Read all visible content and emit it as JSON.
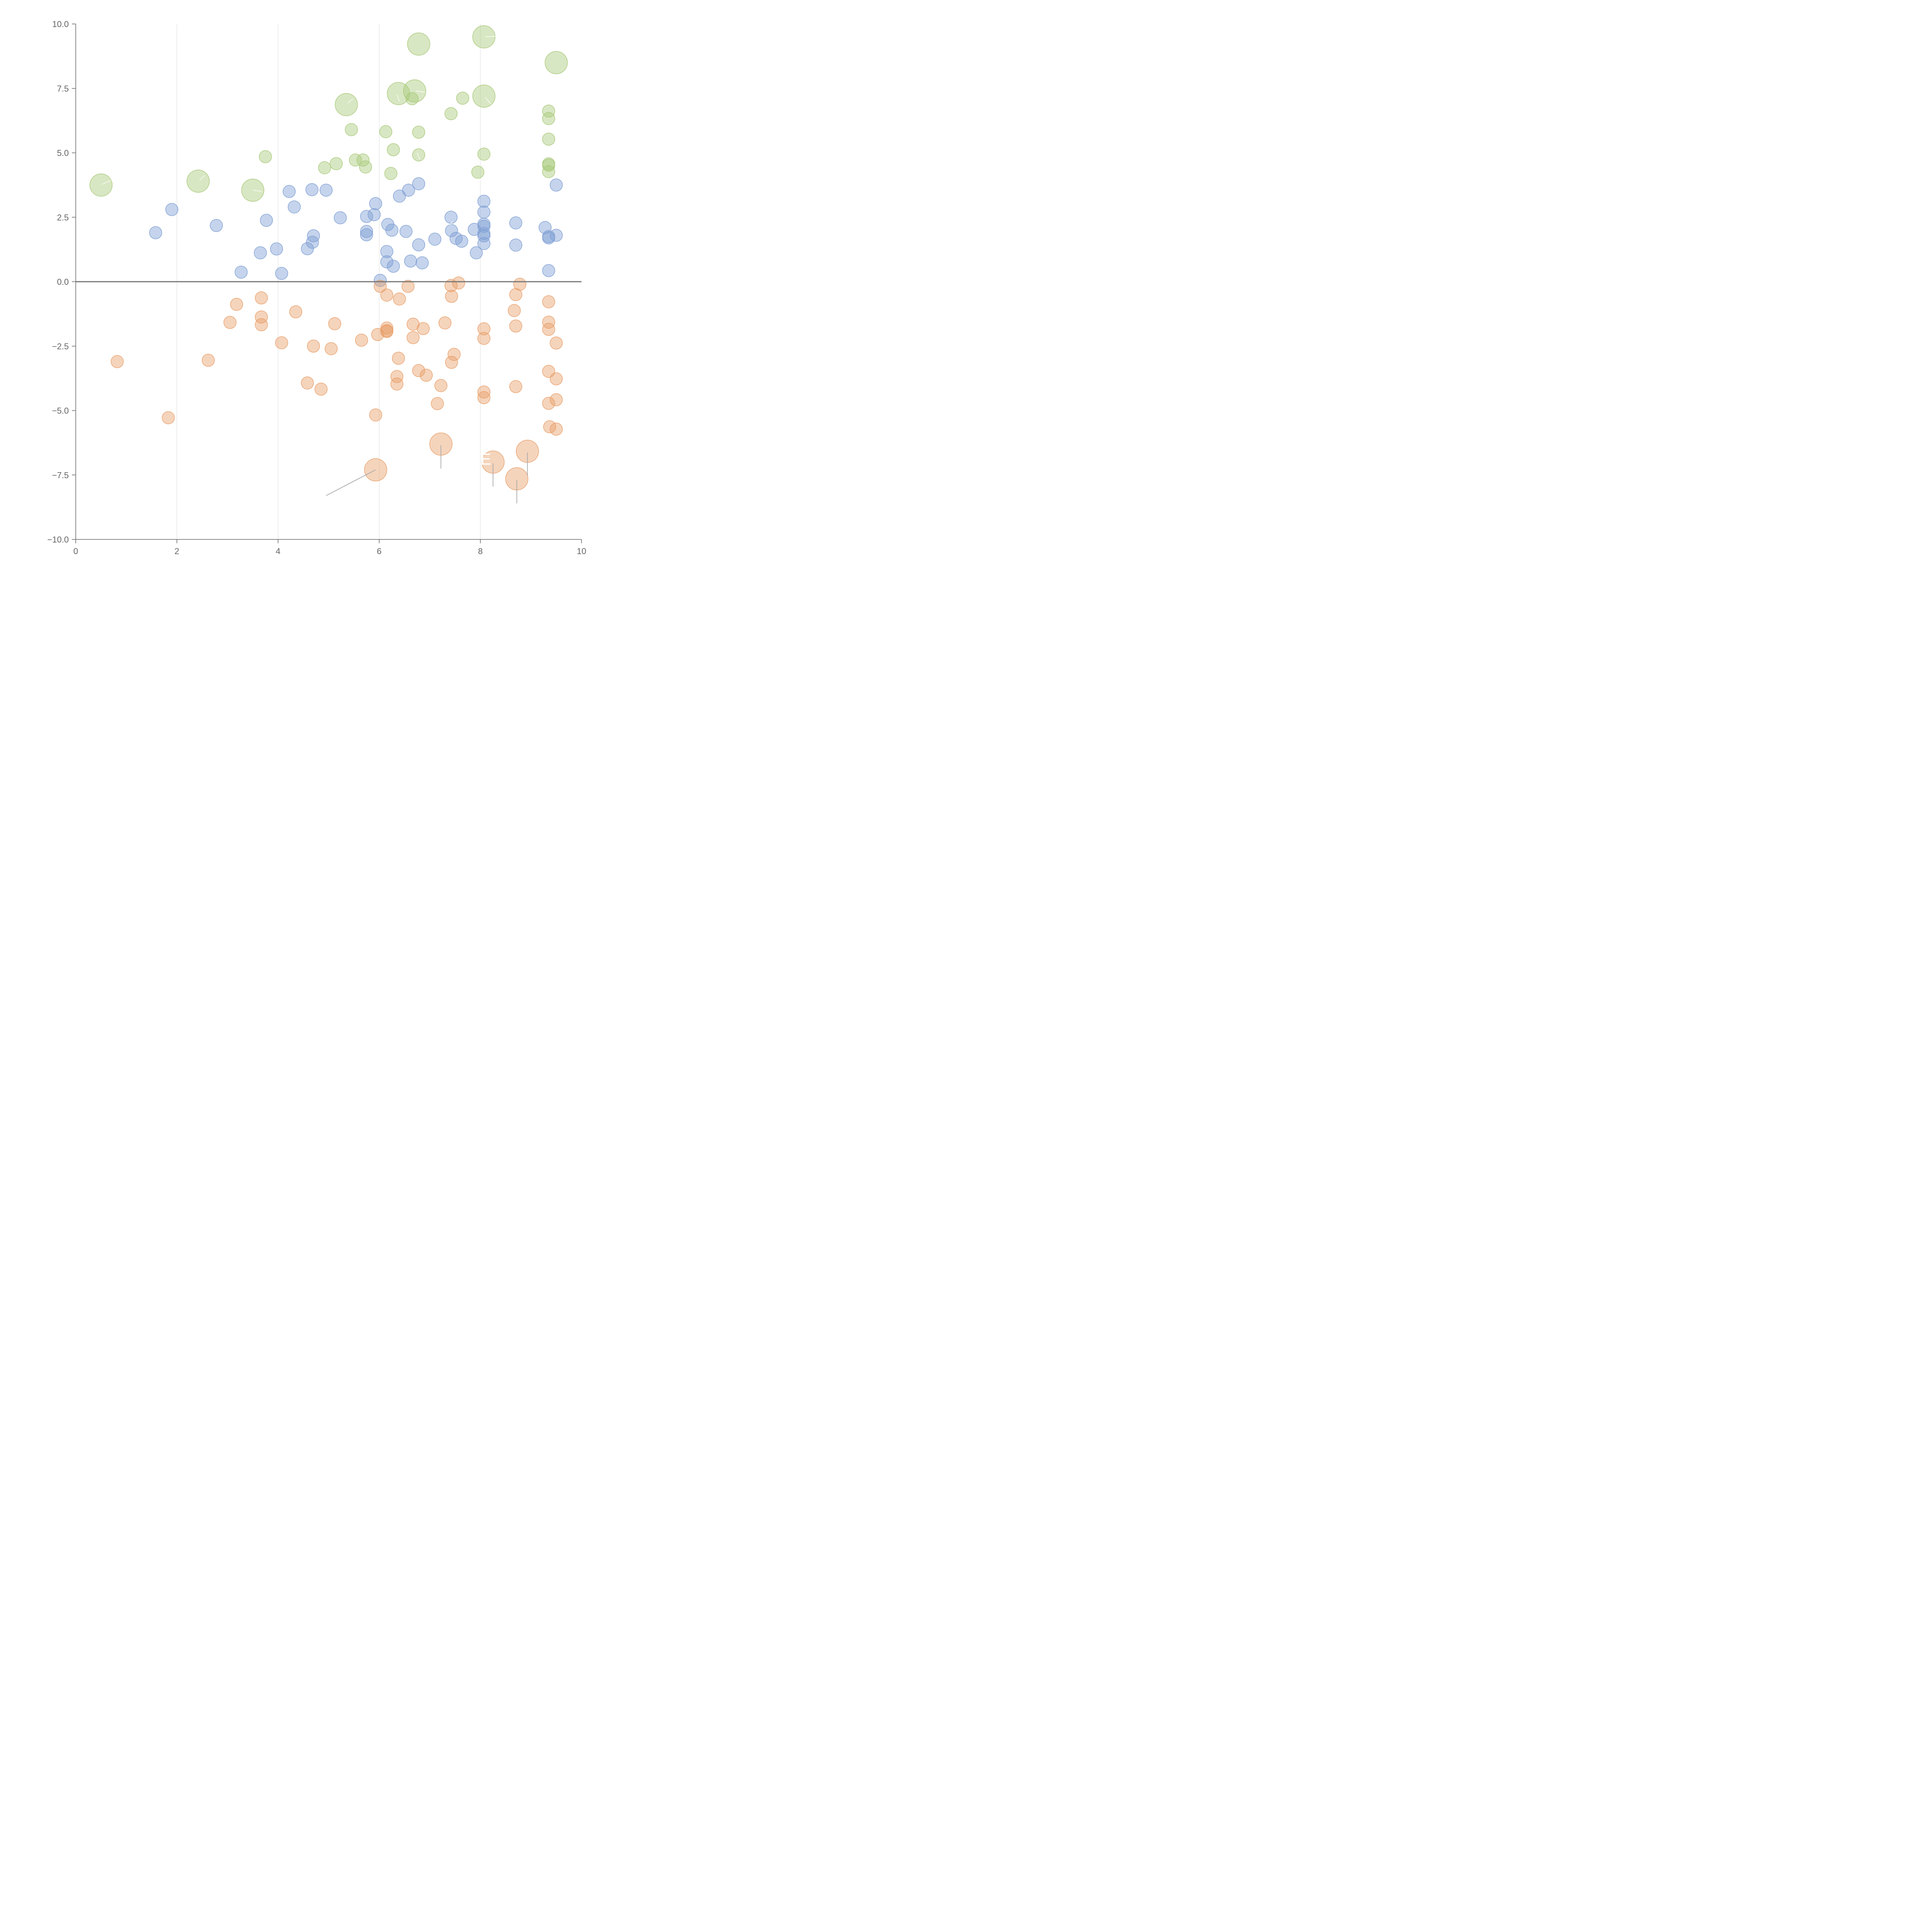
{
  "chart_data": {
    "type": "scatter",
    "title": "",
    "xlabel": "",
    "ylabel": "",
    "xlim": [
      0,
      10
    ],
    "ylim": [
      -10,
      10
    ],
    "x_ticks": [
      0,
      2,
      4,
      6,
      8,
      10
    ],
    "y_ticks": [
      -10,
      -7.5,
      -5,
      -2.5,
      0,
      2.5,
      5,
      7.5,
      10
    ],
    "x_tick_labels": [
      "0",
      "2",
      "4",
      "6",
      "8",
      "10"
    ],
    "y_tick_labels": [
      "−10.0",
      "−7.5",
      "−5.0",
      "−2.5",
      "0.0",
      "2.5",
      "5.0",
      "7.5",
      "10.0"
    ],
    "grid_x": true,
    "grid_y": false,
    "zero_line": true,
    "colors": {
      "green": "#a9c97a",
      "blue": "#7f9fd4",
      "orange": "#e8a06a",
      "axis": "#666666",
      "grid": "#dddddd",
      "zero_line": "#777777",
      "label_line": "#aaaaaa"
    },
    "series": [
      {
        "color_key": "green",
        "points": [
          [
            0.5,
            3.75
          ],
          [
            2.42,
            3.9
          ],
          [
            3.5,
            3.55
          ],
          [
            5.35,
            6.87
          ],
          [
            6.38,
            7.3
          ],
          [
            6.7,
            7.4
          ],
          [
            6.78,
            9.22
          ],
          [
            8.07,
            9.5
          ],
          [
            8.07,
            7.2
          ],
          [
            9.5,
            8.5
          ],
          [
            3.75,
            4.85
          ],
          [
            4.92,
            4.42
          ],
          [
            5.15,
            4.58
          ],
          [
            5.45,
            5.9
          ],
          [
            5.53,
            4.72
          ],
          [
            5.68,
            4.72
          ],
          [
            5.73,
            4.45
          ],
          [
            6.13,
            5.82
          ],
          [
            6.23,
            4.2
          ],
          [
            6.28,
            5.12
          ],
          [
            6.65,
            7.1
          ],
          [
            6.78,
            5.8
          ],
          [
            6.78,
            4.92
          ],
          [
            7.42,
            6.52
          ],
          [
            7.65,
            7.12
          ],
          [
            7.95,
            4.25
          ],
          [
            8.07,
            4.95
          ],
          [
            9.35,
            6.62
          ],
          [
            9.35,
            6.33
          ],
          [
            9.35,
            5.53
          ],
          [
            9.35,
            4.57
          ],
          [
            9.35,
            4.52
          ],
          [
            9.35,
            4.27
          ]
        ],
        "sizes": [
          3,
          3,
          3,
          3,
          3,
          3,
          3,
          3,
          3,
          3,
          1,
          1,
          1,
          1,
          1,
          1,
          1,
          1,
          1,
          1,
          1,
          1,
          1,
          1,
          1,
          1,
          1,
          1,
          1,
          1,
          1,
          1,
          1
        ]
      },
      {
        "color_key": "blue",
        "points": [
          [
            1.58,
            1.9
          ],
          [
            1.9,
            2.8
          ],
          [
            2.78,
            2.18
          ],
          [
            3.27,
            0.37
          ],
          [
            3.65,
            1.12
          ],
          [
            3.77,
            2.38
          ],
          [
            3.97,
            1.27
          ],
          [
            4.07,
            0.32
          ],
          [
            4.22,
            3.5
          ],
          [
            4.32,
            2.9
          ],
          [
            4.58,
            1.28
          ],
          [
            4.67,
            3.57
          ],
          [
            4.68,
            1.53
          ],
          [
            4.7,
            1.78
          ],
          [
            4.95,
            3.55
          ],
          [
            5.23,
            2.48
          ],
          [
            5.75,
            2.53
          ],
          [
            5.75,
            1.95
          ],
          [
            5.75,
            1.82
          ],
          [
            5.9,
            2.6
          ],
          [
            5.93,
            3.03
          ],
          [
            6.02,
            0.05
          ],
          [
            6.15,
            1.17
          ],
          [
            6.15,
            0.77
          ],
          [
            6.17,
            2.22
          ],
          [
            6.25,
            2.0
          ],
          [
            6.28,
            0.6
          ],
          [
            6.4,
            3.32
          ],
          [
            6.53,
            1.95
          ],
          [
            6.58,
            3.55
          ],
          [
            6.62,
            0.8
          ],
          [
            6.78,
            3.8
          ],
          [
            6.78,
            1.43
          ],
          [
            6.85,
            0.73
          ],
          [
            7.1,
            1.65
          ],
          [
            7.42,
            2.5
          ],
          [
            7.43,
            1.98
          ],
          [
            7.52,
            1.68
          ],
          [
            7.63,
            1.57
          ],
          [
            7.88,
            2.03
          ],
          [
            7.92,
            1.12
          ],
          [
            8.07,
            3.12
          ],
          [
            8.07,
            2.7
          ],
          [
            8.07,
            2.23
          ],
          [
            8.07,
            2.15
          ],
          [
            8.07,
            1.87
          ],
          [
            8.07,
            1.78
          ],
          [
            8.07,
            1.48
          ],
          [
            8.7,
            2.28
          ],
          [
            8.7,
            1.42
          ],
          [
            9.28,
            2.1
          ],
          [
            9.35,
            1.75
          ],
          [
            9.35,
            1.7
          ],
          [
            9.35,
            0.43
          ],
          [
            9.5,
            3.75
          ],
          [
            9.5,
            1.8
          ]
        ],
        "sizes": [
          1,
          1,
          1,
          1,
          1,
          1,
          1,
          1,
          1,
          1,
          1,
          1,
          1,
          1,
          1,
          1,
          1,
          1,
          1,
          1,
          1,
          1,
          1,
          1,
          1,
          1,
          1,
          1,
          1,
          1,
          1,
          1,
          1,
          1,
          1,
          1,
          1,
          1,
          1,
          1,
          1,
          1,
          1,
          1,
          1,
          1,
          1,
          1,
          1,
          1,
          1,
          1,
          1,
          1,
          1,
          1
        ]
      },
      {
        "color_key": "orange",
        "points": [
          [
            5.93,
            -7.3
          ],
          [
            7.22,
            -6.3
          ],
          [
            8.25,
            -7.0
          ],
          [
            8.72,
            -7.65
          ],
          [
            8.93,
            -6.58
          ],
          [
            0.82,
            -3.1
          ],
          [
            1.83,
            -5.28
          ],
          [
            2.62,
            -3.05
          ],
          [
            3.05,
            -1.58
          ],
          [
            3.18,
            -0.88
          ],
          [
            3.67,
            -0.63
          ],
          [
            3.67,
            -1.37
          ],
          [
            3.67,
            -1.67
          ],
          [
            4.07,
            -2.37
          ],
          [
            4.35,
            -1.17
          ],
          [
            4.58,
            -3.93
          ],
          [
            4.7,
            -2.5
          ],
          [
            4.85,
            -4.17
          ],
          [
            5.05,
            -2.6
          ],
          [
            5.12,
            -1.63
          ],
          [
            5.65,
            -2.27
          ],
          [
            5.93,
            -5.17
          ],
          [
            5.97,
            -2.05
          ],
          [
            6.02,
            -0.18
          ],
          [
            6.15,
            -0.52
          ],
          [
            6.15,
            -1.8
          ],
          [
            6.15,
            -1.9
          ],
          [
            6.15,
            -1.93
          ],
          [
            6.35,
            -3.68
          ],
          [
            6.35,
            -3.97
          ],
          [
            6.38,
            -2.97
          ],
          [
            6.4,
            -0.67
          ],
          [
            6.57,
            -0.18
          ],
          [
            6.67,
            -1.65
          ],
          [
            6.67,
            -2.17
          ],
          [
            6.78,
            -3.45
          ],
          [
            6.87,
            -1.82
          ],
          [
            6.93,
            -3.63
          ],
          [
            7.15,
            -4.73
          ],
          [
            7.22,
            -4.03
          ],
          [
            7.3,
            -1.6
          ],
          [
            7.42,
            -0.15
          ],
          [
            7.43,
            -0.57
          ],
          [
            7.43,
            -3.13
          ],
          [
            7.48,
            -2.82
          ],
          [
            7.57,
            -0.05
          ],
          [
            8.07,
            -1.83
          ],
          [
            8.07,
            -2.2
          ],
          [
            8.07,
            -4.28
          ],
          [
            8.07,
            -4.5
          ],
          [
            8.67,
            -1.12
          ],
          [
            8.7,
            -0.5
          ],
          [
            8.7,
            -1.72
          ],
          [
            8.7,
            -4.07
          ],
          [
            8.78,
            -0.1
          ],
          [
            9.35,
            -0.78
          ],
          [
            9.35,
            -1.57
          ],
          [
            9.35,
            -1.85
          ],
          [
            9.35,
            -3.48
          ],
          [
            9.35,
            -4.72
          ],
          [
            9.37,
            -5.63
          ],
          [
            9.5,
            -2.38
          ],
          [
            9.5,
            -3.77
          ],
          [
            9.5,
            -4.58
          ],
          [
            9.5,
            -5.72
          ]
        ],
        "sizes": [
          3,
          3,
          3,
          3,
          3,
          1,
          1,
          1,
          1,
          1,
          1,
          1,
          1,
          1,
          1,
          1,
          1,
          1,
          1,
          1,
          1,
          1,
          1,
          1,
          1,
          1,
          1,
          1,
          1,
          1,
          1,
          1,
          1,
          1,
          1,
          1,
          1,
          1,
          1,
          1,
          1,
          1,
          1,
          1,
          1,
          1,
          1,
          1,
          1,
          1,
          1,
          1,
          1,
          1,
          1,
          1,
          1,
          1,
          1,
          1,
          1,
          1,
          1,
          1,
          1
        ]
      }
    ],
    "visible_label_fragments": [
      {
        "text": "E",
        "x": 8.0,
        "y": -7.1
      },
      {
        "text": "NT",
        "x": 8.97,
        "y": -7.75
      },
      {
        "text": "C",
        "x": 6.97,
        "y": 7.25
      }
    ],
    "label_leaders": [
      {
        "from": [
          5.93,
          -7.3
        ],
        "to": [
          4.95,
          -8.3
        ],
        "color_key": "label_line"
      },
      {
        "from": [
          7.22,
          -6.35
        ],
        "to": [
          7.22,
          -7.25
        ],
        "color_key": "label_line"
      },
      {
        "from": [
          8.25,
          -7.05
        ],
        "to": [
          8.25,
          -7.95
        ],
        "color_key": "label_line"
      },
      {
        "from": [
          8.72,
          -7.7
        ],
        "to": [
          8.72,
          -8.6
        ],
        "color_key": "label_line"
      },
      {
        "from": [
          8.93,
          -6.63
        ],
        "to": [
          8.93,
          -7.53
        ],
        "color_key": "label_line"
      },
      {
        "from": [
          0.52,
          3.78
        ],
        "to": [
          0.7,
          3.93
        ],
        "color_key": "white"
      },
      {
        "from": [
          2.45,
          3.93
        ],
        "to": [
          2.55,
          4.13
        ],
        "color_key": "white"
      },
      {
        "from": [
          3.5,
          3.55
        ],
        "to": [
          3.68,
          3.5
        ],
        "color_key": "white"
      },
      {
        "from": [
          5.38,
          6.93
        ],
        "to": [
          5.48,
          7.1
        ],
        "color_key": "white"
      },
      {
        "from": [
          6.35,
          7.25
        ],
        "to": [
          6.4,
          7.0
        ],
        "color_key": "white"
      },
      {
        "from": [
          6.73,
          7.4
        ],
        "to": [
          6.9,
          7.35
        ],
        "color_key": "white"
      },
      {
        "from": [
          8.1,
          9.5
        ],
        "to": [
          8.3,
          9.52
        ],
        "color_key": "white"
      },
      {
        "from": [
          8.1,
          7.15
        ],
        "to": [
          8.2,
          6.9
        ],
        "color_key": "white"
      },
      {
        "from": [
          6.8,
          4.75
        ],
        "to": [
          6.75,
          5.0
        ],
        "color_key": "white"
      },
      {
        "from": [
          7.4,
          2.2
        ],
        "to": [
          7.45,
          2.35
        ],
        "color_key": "white"
      },
      {
        "from": [
          6.05,
          8.25
        ],
        "to": [
          6.05,
          8.35
        ],
        "color_key": "white"
      }
    ]
  }
}
